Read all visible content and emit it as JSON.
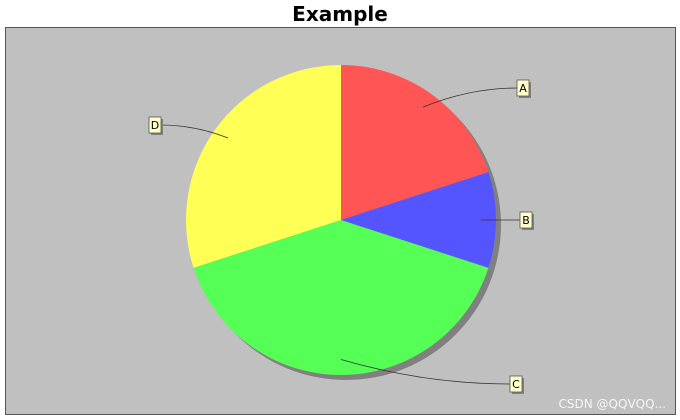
{
  "chart_data": {
    "type": "pie",
    "title": "Example",
    "categories": [
      "A",
      "B",
      "C",
      "D"
    ],
    "values": [
      20,
      10,
      40,
      30
    ],
    "colors": [
      "#ff5555",
      "#5555ff",
      "#55ff55",
      "#ffff55"
    ],
    "background": "#c0c0c0",
    "label_box_color": "#ffffcc",
    "legend": "none"
  },
  "watermark": "CSDN @QQVQQ..."
}
